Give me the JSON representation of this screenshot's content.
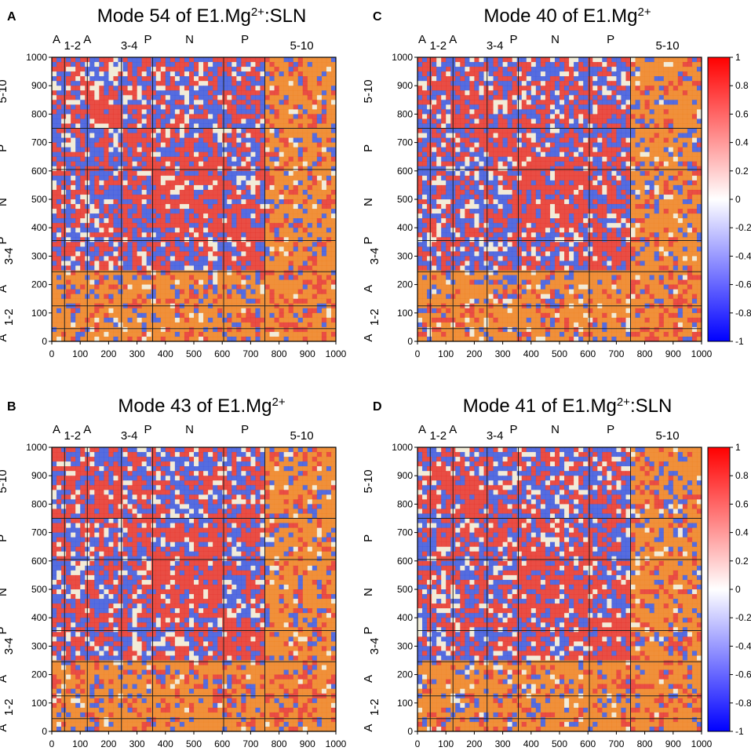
{
  "chart_data": [
    {
      "type": "heatmap",
      "panel_letter": "A",
      "title_prefix": "Mode 54 of E1.Mg",
      "title_sup": "2+",
      "title_suffix": ":SLN",
      "domains": [
        "A",
        "1-2",
        "A",
        "3-4",
        "P",
        "N",
        "P",
        "5-10"
      ],
      "y_domains": [
        "A",
        "1-2",
        "A",
        "3-4",
        "P",
        "N",
        "P",
        "5-10"
      ],
      "x_ticks": [
        "0",
        "100",
        "200",
        "300",
        "400",
        "500",
        "600",
        "700",
        "800",
        "900",
        "1000"
      ],
      "y_ticks": [
        "0",
        "100",
        "200",
        "300",
        "400",
        "500",
        "600",
        "700",
        "800",
        "900",
        "1000"
      ],
      "xlim": [
        0,
        1000
      ],
      "ylim": [
        0,
        1000
      ],
      "block_boundaries": [
        45,
        125,
        245,
        355,
        605,
        750
      ],
      "colorbar": false
    },
    {
      "type": "heatmap",
      "panel_letter": "C",
      "title_prefix": "Mode 40 of E1.Mg",
      "title_sup": "2+",
      "title_suffix": "",
      "domains": [
        "A",
        "1-2",
        "A",
        "3-4",
        "P",
        "N",
        "P",
        "5-10"
      ],
      "y_domains": [
        "A",
        "1-2",
        "A",
        "3-4",
        "P",
        "N",
        "P",
        "5-10"
      ],
      "x_ticks": [
        "0",
        "100",
        "200",
        "300",
        "400",
        "500",
        "600",
        "700",
        "800",
        "900",
        "1000"
      ],
      "y_ticks": [
        "0",
        "100",
        "200",
        "300",
        "400",
        "500",
        "600",
        "700",
        "800",
        "900",
        "1000"
      ],
      "xlim": [
        0,
        1000
      ],
      "ylim": [
        0,
        1000
      ],
      "block_boundaries": [
        45,
        125,
        245,
        355,
        605,
        750
      ],
      "colorbar": true
    },
    {
      "type": "heatmap",
      "panel_letter": "B",
      "title_prefix": "Mode 43 of E1.Mg",
      "title_sup": "2+",
      "title_suffix": "",
      "domains": [
        "A",
        "1-2",
        "A",
        "3-4",
        "P",
        "N",
        "P",
        "5-10"
      ],
      "y_domains": [
        "A",
        "1-2",
        "A",
        "3-4",
        "P",
        "N",
        "P",
        "5-10"
      ],
      "x_ticks": [
        "0",
        "100",
        "200",
        "300",
        "400",
        "500",
        "600",
        "700",
        "800",
        "900",
        "1000"
      ],
      "y_ticks": [
        "0",
        "100",
        "200",
        "300",
        "400",
        "500",
        "600",
        "700",
        "800",
        "900",
        "1000"
      ],
      "xlim": [
        0,
        1000
      ],
      "ylim": [
        0,
        1000
      ],
      "block_boundaries": [
        45,
        125,
        245,
        355,
        605,
        750
      ],
      "colorbar": false
    },
    {
      "type": "heatmap",
      "panel_letter": "D",
      "title_prefix": "Mode 41 of E1.Mg",
      "title_sup": "2+",
      "title_suffix": ":SLN",
      "domains": [
        "A",
        "1-2",
        "A",
        "3-4",
        "P",
        "N",
        "P",
        "5-10"
      ],
      "y_domains": [
        "A",
        "1-2",
        "A",
        "3-4",
        "P",
        "N",
        "P",
        "5-10"
      ],
      "x_ticks": [
        "0",
        "100",
        "200",
        "300",
        "400",
        "500",
        "600",
        "700",
        "800",
        "900",
        "1000"
      ],
      "y_ticks": [
        "0",
        "100",
        "200",
        "300",
        "400",
        "500",
        "600",
        "700",
        "800",
        "900",
        "1000"
      ],
      "xlim": [
        0,
        1000
      ],
      "ylim": [
        0,
        1000
      ],
      "block_boundaries": [
        45,
        125,
        245,
        355,
        605,
        750
      ],
      "colorbar": true
    }
  ],
  "colorbar": {
    "ticks": [
      "1",
      "0.8",
      "0.6",
      "0.4",
      "0.2",
      "0",
      "-0.2",
      "-0.4",
      "-0.6",
      "-0.8",
      "-1"
    ],
    "range": [
      -1,
      1
    ],
    "colors": {
      "low": "#0000ff",
      "mid": "#ffffff",
      "high": "#ff0000"
    }
  },
  "palette": {
    "red": "#e8312a",
    "blue": "#3a56e0",
    "orange": "#f0801e",
    "light": "#f2ecd8"
  }
}
